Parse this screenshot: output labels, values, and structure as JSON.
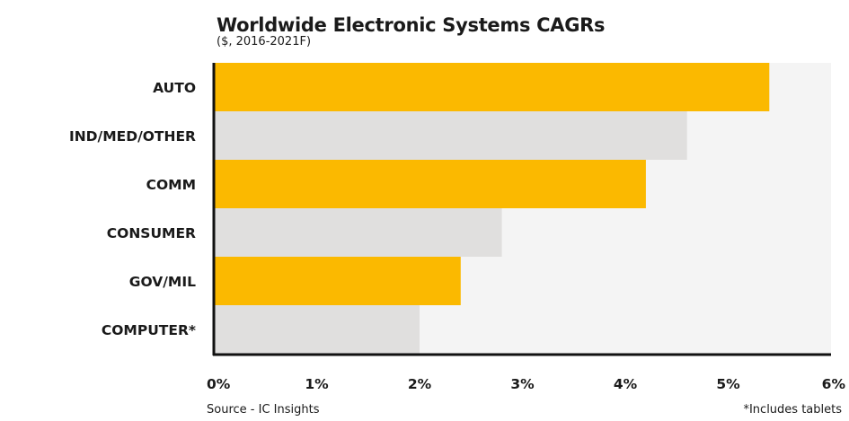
{
  "chart_data": {
    "type": "bar",
    "orientation": "horizontal",
    "title": "Worldwide Electronic Systems CAGRs",
    "subtitle": "($, 2016-2021F)",
    "categories": [
      "AUTO",
      "IND/MED/OTHER",
      "COMM",
      "CONSUMER",
      "GOV/MIL",
      "COMPUTER*"
    ],
    "values": [
      5.4,
      4.6,
      4.2,
      2.8,
      2.4,
      2.0
    ],
    "bar_colors": [
      "#fbb900",
      "#e0dfde",
      "#fbb900",
      "#e0dfde",
      "#fbb900",
      "#e0dfde"
    ],
    "plot_background": "#f4f4f4",
    "axis_color": "#111111",
    "xlim": [
      0,
      6
    ],
    "xticks": [
      0,
      1,
      2,
      3,
      4,
      5,
      6
    ],
    "xtick_labels": [
      "0%",
      "1%",
      "2%",
      "3%",
      "4%",
      "5%",
      "6%"
    ],
    "xlabel": "",
    "ylabel": "",
    "grid": false,
    "legend": "none",
    "source": "Source - IC Insights",
    "footnote": "*Includes tablets"
  }
}
